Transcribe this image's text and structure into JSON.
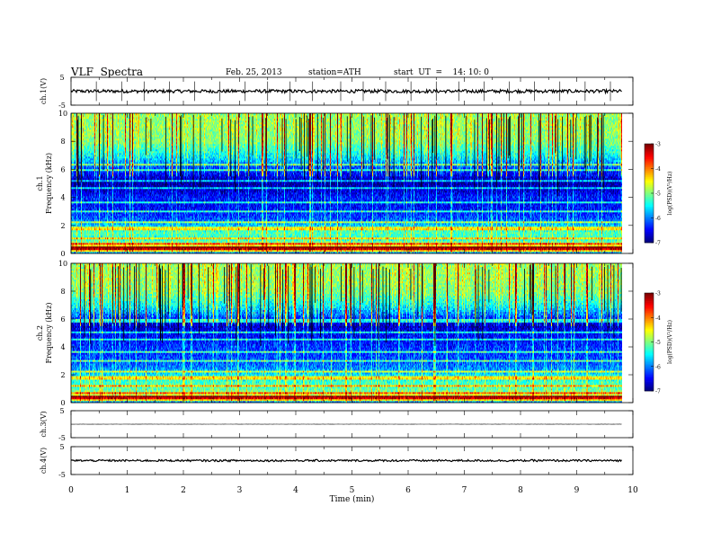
{
  "header": {
    "title": "VLF  Spectra",
    "date": "Feb. 25, 2013",
    "station": "station=ATH",
    "start": "start  UT  =    14: 10: 0"
  },
  "chart_data": [
    {
      "panel": "ch1-waveform",
      "type": "line",
      "ylabel": "ch.1(V)",
      "ylim": [
        -5,
        5
      ],
      "yticks": [
        "5",
        "-5"
      ],
      "xlim": [
        0,
        10
      ],
      "data_end_min": 9.8,
      "baseline": 0,
      "noise_amplitude": 0.6,
      "spikes_min": [
        0.45,
        0.9,
        1.3,
        1.75,
        2.2,
        2.65,
        3.1,
        3.5,
        3.9,
        4.3,
        4.8,
        5.2,
        5.6,
        6.05,
        6.5,
        6.9,
        7.35,
        7.8,
        8.25,
        8.7,
        9.15,
        9.6
      ],
      "color": "#000000"
    },
    {
      "panel": "ch1-spectrogram",
      "type": "heatmap",
      "ylabel_1": "ch.1",
      "ylabel_2": "Frequency  (kHz)",
      "yticks": [
        "0",
        "2",
        "4",
        "6",
        "8",
        "10"
      ],
      "ylim": [
        0,
        10
      ],
      "xlim": [
        0,
        10
      ],
      "data_end_min": 9.8,
      "colorbar": {
        "label": "log(PSD)(V²/Hz)",
        "ticks": [
          "-3",
          "-4",
          "-5",
          "-6",
          "-7"
        ],
        "range": [
          -7,
          -3
        ]
      },
      "freq_profile_khz": [
        {
          "f": 0.0,
          "v": -6.6
        },
        {
          "f": 0.3,
          "v": -3.2
        },
        {
          "f": 0.6,
          "v": -4.6
        },
        {
          "f": 1.0,
          "v": -5.4
        },
        {
          "f": 1.5,
          "v": -5.2
        },
        {
          "f": 2.0,
          "v": -5.7
        },
        {
          "f": 2.5,
          "v": -6.2
        },
        {
          "f": 3.0,
          "v": -6.4
        },
        {
          "f": 3.5,
          "v": -6.5
        },
        {
          "f": 4.0,
          "v": -6.4
        },
        {
          "f": 4.5,
          "v": -6.7
        },
        {
          "f": 5.0,
          "v": -6.9
        },
        {
          "f": 5.5,
          "v": -6.6
        },
        {
          "f": 6.0,
          "v": -6.3
        },
        {
          "f": 6.5,
          "v": -5.9
        },
        {
          "f": 7.0,
          "v": -5.5
        },
        {
          "f": 8.0,
          "v": -5.0
        },
        {
          "f": 9.0,
          "v": -4.9
        },
        {
          "f": 10.0,
          "v": -4.9
        }
      ],
      "narrowband_lines_khz": [
        0.45,
        0.75,
        1.1,
        1.8,
        2.3,
        3.0,
        3.6,
        4.7,
        5.2,
        6.0,
        6.4
      ]
    },
    {
      "panel": "ch2-spectrogram",
      "type": "heatmap",
      "ylabel_1": "ch.2",
      "ylabel_2": "Frequency  (kHz)",
      "yticks": [
        "0",
        "2",
        "4",
        "6",
        "8",
        "10"
      ],
      "ylim": [
        0,
        10
      ],
      "xlim": [
        0,
        10
      ],
      "data_end_min": 9.8,
      "colorbar": {
        "label": "log(PSD)(V²/Hz)",
        "ticks": [
          "-3",
          "-4",
          "-5",
          "-6",
          "-7"
        ],
        "range": [
          -7,
          -3
        ]
      },
      "freq_profile_khz": [
        {
          "f": 0.0,
          "v": -6.6
        },
        {
          "f": 0.3,
          "v": -3.3
        },
        {
          "f": 0.6,
          "v": -4.8
        },
        {
          "f": 1.0,
          "v": -5.2
        },
        {
          "f": 1.5,
          "v": -5.3
        },
        {
          "f": 2.0,
          "v": -5.6
        },
        {
          "f": 2.5,
          "v": -6.0
        },
        {
          "f": 3.0,
          "v": -6.2
        },
        {
          "f": 3.5,
          "v": -6.3
        },
        {
          "f": 4.0,
          "v": -6.3
        },
        {
          "f": 4.5,
          "v": -6.5
        },
        {
          "f": 5.0,
          "v": -6.5
        },
        {
          "f": 5.5,
          "v": -6.8
        },
        {
          "f": 6.0,
          "v": -6.4
        },
        {
          "f": 6.5,
          "v": -5.9
        },
        {
          "f": 7.0,
          "v": -5.5
        },
        {
          "f": 8.0,
          "v": -5.0
        },
        {
          "f": 9.0,
          "v": -4.9
        },
        {
          "f": 10.0,
          "v": -4.9
        }
      ],
      "narrowband_lines_khz": [
        0.45,
        0.75,
        1.2,
        1.8,
        2.3,
        3.0,
        3.7,
        4.6,
        5.1,
        5.9
      ]
    },
    {
      "panel": "ch3-waveform",
      "type": "line",
      "ylabel": "ch.3(V)",
      "ylim": [
        -5,
        5
      ],
      "yticks": [
        "5",
        "-5"
      ],
      "xlim": [
        0,
        10
      ],
      "data_end_min": 9.8,
      "baseline": 0,
      "noise_amplitude": 0.05,
      "spikes_min": [],
      "color": "#000000"
    },
    {
      "panel": "ch4-waveform",
      "type": "line",
      "ylabel": "ch.4(V)",
      "ylim": [
        -5,
        5
      ],
      "yticks": [
        "5",
        "-5"
      ],
      "xlim": [
        0,
        10
      ],
      "data_end_min": 9.8,
      "baseline": 0,
      "noise_amplitude": 0.35,
      "spikes_min": [],
      "color": "#000000"
    }
  ],
  "x_axis": {
    "label": "Time  (min)",
    "ticks": [
      "0",
      "1",
      "2",
      "3",
      "4",
      "5",
      "6",
      "7",
      "8",
      "9",
      "10"
    ],
    "range": [
      0,
      10
    ]
  }
}
